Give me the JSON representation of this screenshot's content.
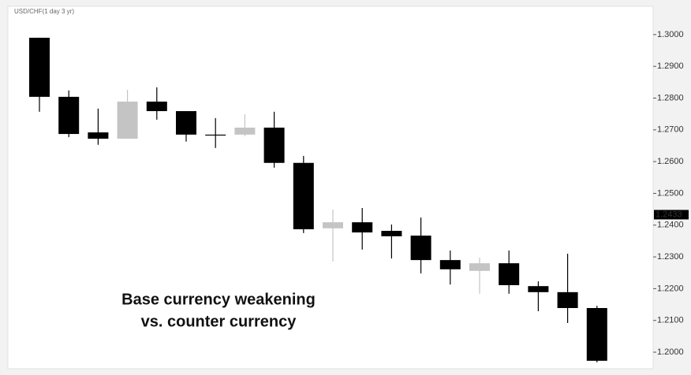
{
  "chart_data": {
    "type": "candlestick",
    "title": "USD/CHF(1 day 3 yr)",
    "annotation": [
      "Base currency weakening",
      "vs. counter currency"
    ],
    "open": [
      1.299,
      1.2804,
      1.2692,
      1.2672,
      1.2789,
      1.2759,
      1.2685,
      1.2685,
      1.2707,
      1.2596,
      1.239,
      1.2409,
      1.2382,
      1.2367,
      1.229,
      1.2256,
      1.228,
      1.2208,
      1.2189,
      1.2139
    ],
    "high": [
      1.299,
      1.2824,
      1.2767,
      1.2826,
      1.2834,
      1.2759,
      1.2737,
      1.2749,
      1.2757,
      1.2618,
      1.2449,
      1.2454,
      1.2402,
      1.2424,
      1.232,
      1.2298,
      1.232,
      1.2223,
      1.231,
      1.2146
    ],
    "low": [
      1.2757,
      1.2677,
      1.2653,
      1.2672,
      1.2732,
      1.2663,
      1.2643,
      1.268,
      1.2581,
      1.2375,
      1.2285,
      1.2323,
      1.2295,
      1.2248,
      1.2213,
      1.2184,
      1.2184,
      1.2129,
      1.2092,
      1.1968
    ],
    "close": [
      1.2804,
      1.2687,
      1.2672,
      1.2789,
      1.2759,
      1.2685,
      1.2685,
      1.2707,
      1.2596,
      1.2387,
      1.2409,
      1.2377,
      1.2365,
      1.229,
      1.2261,
      1.228,
      1.2211,
      1.2189,
      1.2139,
      1.1973
    ],
    "up_color": "#c4c4c4",
    "down_color": "#000000",
    "ylim": [
      1.1948,
      1.3089
    ],
    "yticks": [
      {
        "value": 1.3,
        "label": "1.3000"
      },
      {
        "value": 1.29,
        "label": "1.2900"
      },
      {
        "value": 1.28,
        "label": "1.2800"
      },
      {
        "value": 1.27,
        "label": "1.2700"
      },
      {
        "value": 1.26,
        "label": "1.2600"
      },
      {
        "value": 1.25,
        "label": "1.2500"
      },
      {
        "value": 1.24,
        "label": "1.2400"
      },
      {
        "value": 1.23,
        "label": "1.2300"
      },
      {
        "value": 1.22,
        "label": "1.2200"
      },
      {
        "value": 1.21,
        "label": "1.2100"
      },
      {
        "value": 1.2,
        "label": "1.2000"
      }
    ],
    "current_price": {
      "value": 1.2433,
      "label": "1.2433"
    }
  }
}
